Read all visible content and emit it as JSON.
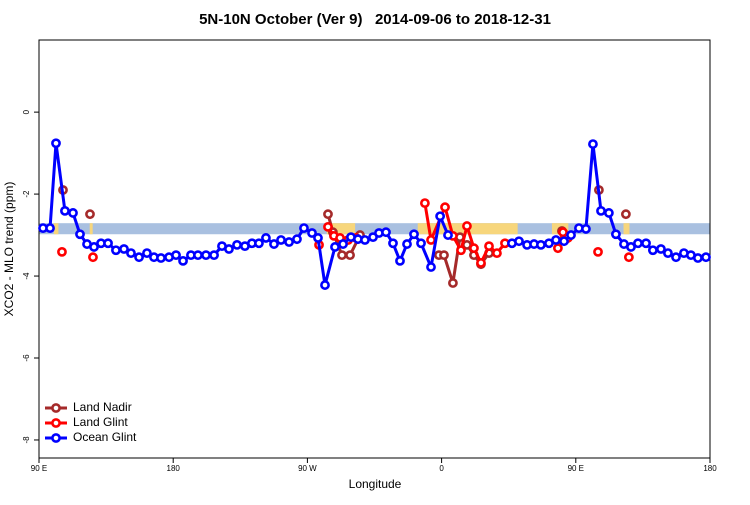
{
  "chart_data": {
    "type": "line",
    "title": "5N-10N October (Ver 9)   2014-09-06 to 2018-12-31",
    "xlabel": "Longitude",
    "ylabel": "XCO2 - MLO trend (ppm)",
    "xlim": [
      90,
      540
    ],
    "ylim": [
      -8.44,
      1.76
    ],
    "xticks": [
      {
        "value": 90,
        "label": "90 E"
      },
      180,
      {
        "value": 270,
        "label": "90 W"
      },
      {
        "value": 360,
        "label": "0"
      },
      {
        "value": 450,
        "label": "90 E"
      },
      {
        "value": 540,
        "label": "180"
      }
    ],
    "yticks": [
      0,
      -2,
      -4,
      -6,
      -8
    ],
    "band": {
      "color": "#a9c0e0",
      "range": [
        -2.98,
        -2.71
      ]
    },
    "shaded_ranges": {
      "color": "#f7d67c",
      "ranges": [
        [
          100,
          103
        ],
        [
          124,
          126
        ],
        [
          283,
          302
        ],
        [
          344,
          411
        ],
        [
          434,
          445
        ],
        [
          482,
          486
        ]
      ]
    },
    "legend": "bottom-left",
    "series": [
      {
        "name": "Land Nadir",
        "color": "#a52a2a",
        "x": [
          106.1,
          null,
          124.2,
          null,
          283.8,
          287.1,
          293.2,
          298.6,
          305.3,
          null,
          358.2,
          361.6,
          367.6,
          372.3,
          377.0,
          381.7,
          386.4,
          391.8,
          null,
          440.7,
          442.7,
          null,
          465.5,
          null,
          483.6
        ],
        "values": [
          -1.9,
          null,
          -2.49,
          null,
          -2.49,
          -2.93,
          -3.49,
          -3.49,
          -3.0,
          null,
          -3.49,
          -3.49,
          -4.17,
          -3.05,
          -3.24,
          -3.49,
          -3.71,
          -3.44,
          null,
          -2.9,
          -3.12,
          null,
          -1.9,
          null,
          -2.49
        ]
      },
      {
        "name": "Land Glint",
        "color": "#ff0000",
        "x": [
          105.4,
          null,
          126.2,
          null,
          277.8,
          null,
          283.8,
          287.8,
          291.9,
          297.3,
          302.6,
          null,
          348.8,
          352.9,
          362.3,
          367.6,
          373.0,
          377.0,
          381.7,
          386.4,
          391.8,
          397.1,
          402.5,
          null,
          438.0,
          441.4,
          444.7,
          null,
          464.9,
          null,
          485.6
        ],
        "values": [
          -3.41,
          null,
          -3.54,
          null,
          -3.24,
          null,
          -2.8,
          -3.02,
          -3.07,
          -3.12,
          -3.07,
          null,
          -2.22,
          -3.12,
          -2.32,
          -3.02,
          -3.37,
          -2.78,
          -3.32,
          -3.68,
          -3.27,
          -3.44,
          -3.2,
          null,
          -3.32,
          -2.93,
          -3.07,
          null,
          -3.41,
          null,
          -3.54
        ]
      },
      {
        "name": "Ocean Glint",
        "color": "#0000ff",
        "x": [
          92.7,
          97.4,
          101.4,
          107.4,
          112.8,
          117.5,
          122.2,
          126.9,
          131.6,
          136.3,
          141.6,
          147.0,
          151.7,
          157.1,
          162.4,
          167.1,
          171.8,
          177.2,
          181.9,
          186.6,
          191.9,
          196.6,
          202.0,
          207.4,
          212.7,
          217.4,
          222.8,
          228.1,
          232.8,
          237.5,
          242.2,
          247.6,
          252.3,
          257.7,
          263.0,
          267.7,
          273.1,
          277.1,
          281.8,
          288.5,
          293.9,
          299.2,
          303.9,
          308.6,
          314.0,
          318.0,
          322.7,
          327.4,
          332.1,
          336.8,
          341.5,
          346.2,
          352.9,
          359.0,
          364.3,
          null,
          407.2,
          411.9,
          417.3,
          422.0,
          426.6,
          432.0,
          436.7,
          442.1,
          446.8,
          452.1,
          456.8,
          461.5,
          466.9,
          472.2,
          476.9,
          482.3,
          487.0,
          491.7,
          497.1,
          501.7,
          507.1,
          511.8,
          517.2,
          522.5,
          527.2,
          531.9,
          537.3
        ],
        "values": [
          -2.83,
          -2.83,
          -0.76,
          -2.41,
          -2.46,
          -2.98,
          -3.22,
          -3.29,
          -3.2,
          -3.2,
          -3.37,
          -3.34,
          -3.44,
          -3.54,
          -3.44,
          -3.54,
          -3.56,
          -3.54,
          -3.49,
          -3.63,
          -3.49,
          -3.49,
          -3.49,
          -3.49,
          -3.27,
          -3.34,
          -3.24,
          -3.27,
          -3.2,
          -3.2,
          -3.07,
          -3.22,
          -3.12,
          -3.17,
          -3.1,
          -2.83,
          -2.95,
          -3.07,
          -4.22,
          -3.29,
          -3.22,
          -3.05,
          -3.1,
          -3.12,
          -3.05,
          -2.95,
          -2.93,
          -3.2,
          -3.63,
          -3.22,
          -2.98,
          -3.2,
          -3.78,
          -2.54,
          -3.0,
          null,
          -3.2,
          -3.15,
          -3.24,
          -3.22,
          -3.24,
          -3.2,
          -3.12,
          -3.15,
          -3.0,
          -2.83,
          -2.85,
          -0.78,
          -2.41,
          -2.46,
          -2.98,
          -3.22,
          -3.29,
          -3.2,
          -3.2,
          -3.37,
          -3.34,
          -3.44,
          -3.54,
          -3.44,
          -3.49,
          -3.56,
          -3.54
        ]
      }
    ]
  }
}
